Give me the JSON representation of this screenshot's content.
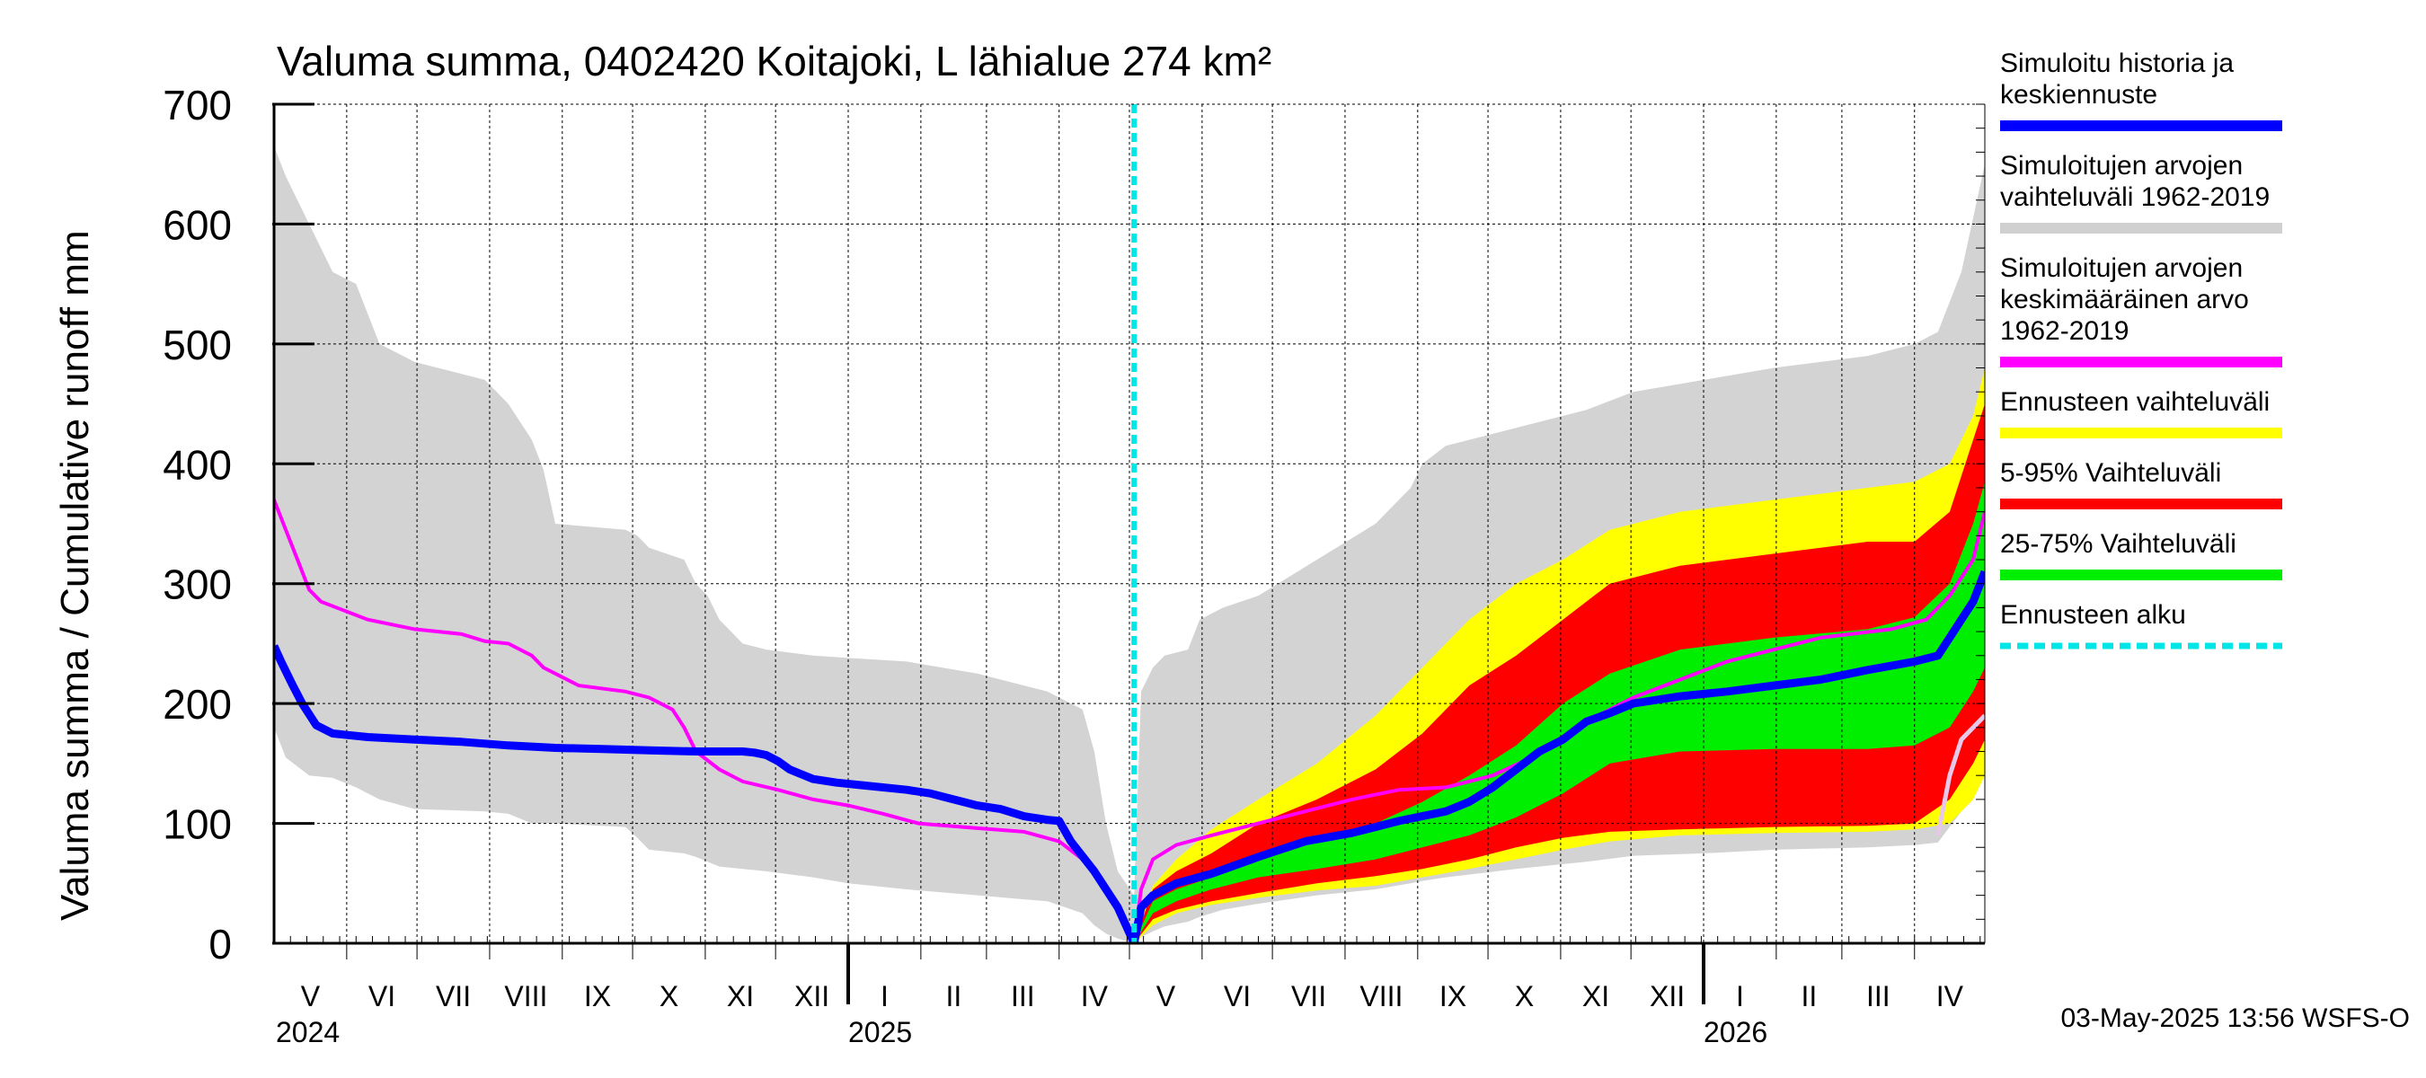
{
  "chart_data": {
    "type": "area",
    "title": "Valuma summa, 0402420 Koitajoki, L lähialue 274 km²",
    "ylabel": "Valuma summa / Cumulative runoff    mm",
    "yticks": [
      0,
      100,
      200,
      300,
      400,
      500,
      600,
      700
    ],
    "ylim": [
      0,
      700
    ],
    "x_unit": "days since 2024-05-01",
    "xlim": [
      0,
      730
    ],
    "forecast_start_day": 367,
    "months": [
      {
        "label": "V",
        "start": 0
      },
      {
        "label": "VI",
        "start": 31
      },
      {
        "label": "VII",
        "start": 61
      },
      {
        "label": "VIII",
        "start": 92
      },
      {
        "label": "IX",
        "start": 123
      },
      {
        "label": "X",
        "start": 153
      },
      {
        "label": "XI",
        "start": 184
      },
      {
        "label": "XII",
        "start": 214
      },
      {
        "label": "I",
        "start": 245
      },
      {
        "label": "II",
        "start": 276
      },
      {
        "label": "III",
        "start": 304
      },
      {
        "label": "IV",
        "start": 335
      },
      {
        "label": "V",
        "start": 365
      },
      {
        "label": "VI",
        "start": 396
      },
      {
        "label": "VII",
        "start": 426
      },
      {
        "label": "VIII",
        "start": 457
      },
      {
        "label": "IX",
        "start": 488
      },
      {
        "label": "X",
        "start": 518
      },
      {
        "label": "XI",
        "start": 549
      },
      {
        "label": "XII",
        "start": 579
      },
      {
        "label": "I",
        "start": 610
      },
      {
        "label": "II",
        "start": 641
      },
      {
        "label": "III",
        "start": 669
      },
      {
        "label": "IV",
        "start": 700
      }
    ],
    "years": [
      {
        "label": "2024",
        "start": 0
      },
      {
        "label": "2025",
        "start": 245
      },
      {
        "label": "2026",
        "start": 610
      }
    ],
    "legend": [
      {
        "key": "sim",
        "text": [
          "Simuloitu historia ja",
          "keskiennuste"
        ],
        "color": "#0000ff",
        "style": "solid"
      },
      {
        "key": "range",
        "text": [
          "Simuloitujen arvojen",
          "vaihteluväli 1962-2019"
        ],
        "color": "#d0d0d0",
        "style": "solid"
      },
      {
        "key": "mean",
        "text": [
          "Simuloitujen arvojen",
          "keskimääräinen arvo",
          "   1962-2019"
        ],
        "color": "#ff00ff",
        "style": "solid"
      },
      {
        "key": "fc_range",
        "text": [
          "Ennusteen vaihteluväli"
        ],
        "color": "#ffff00",
        "style": "solid"
      },
      {
        "key": "p5_95",
        "text": [
          "5-95% Vaihteluväli"
        ],
        "color": "#ff0000",
        "style": "solid"
      },
      {
        "key": "p25_75",
        "text": [
          "25-75% Vaihteluväli"
        ],
        "color": "#00ee00",
        "style": "solid"
      },
      {
        "key": "start",
        "text": [
          "Ennusteen alku"
        ],
        "color": "#00e5e5",
        "style": "dashed"
      }
    ],
    "series": {
      "hist_range": {
        "x": [
          0,
          5,
          15,
          25,
          35,
          45,
          60,
          90,
          100,
          110,
          115,
          120,
          150,
          155,
          160,
          175,
          180,
          185,
          190,
          200,
          210,
          230,
          245,
          270,
          300,
          330,
          345,
          350,
          355,
          360,
          367,
          370,
          375,
          380,
          390,
          395,
          405,
          420,
          445,
          470,
          485,
          490,
          500,
          530,
          560,
          580,
          610,
          640,
          680,
          700,
          710,
          720,
          730
        ],
        "upper": [
          665,
          640,
          600,
          560,
          550,
          500,
          485,
          470,
          450,
          420,
          395,
          350,
          345,
          340,
          330,
          320,
          300,
          290,
          270,
          250,
          245,
          240,
          238,
          235,
          225,
          210,
          195,
          160,
          100,
          60,
          40,
          210,
          230,
          240,
          245,
          270,
          280,
          290,
          320,
          350,
          380,
          400,
          415,
          430,
          445,
          460,
          470,
          480,
          490,
          500,
          510,
          560,
          650
        ],
        "lower": [
          180,
          155,
          140,
          138,
          130,
          120,
          112,
          110,
          108,
          100,
          100,
          100,
          97,
          88,
          78,
          75,
          72,
          68,
          64,
          62,
          60,
          55,
          50,
          45,
          40,
          35,
          25,
          15,
          8,
          4,
          0,
          5,
          10,
          14,
          18,
          22,
          28,
          33,
          40,
          45,
          50,
          52,
          55,
          62,
          68,
          73,
          75,
          78,
          80,
          82,
          84,
          110,
          180
        ]
      },
      "fc_range": {
        "x": [
          367,
          375,
          385,
          400,
          420,
          445,
          470,
          490,
          510,
          530,
          550,
          570,
          600,
          640,
          680,
          700,
          715,
          725,
          730
        ],
        "upper": [
          0,
          48,
          70,
          95,
          120,
          150,
          190,
          230,
          270,
          300,
          320,
          345,
          360,
          370,
          380,
          385,
          400,
          440,
          480
        ],
        "lower": [
          0,
          15,
          25,
          32,
          38,
          44,
          48,
          55,
          62,
          70,
          78,
          85,
          90,
          92,
          93,
          95,
          100,
          120,
          140
        ]
      },
      "p5_95": {
        "x": [
          367,
          375,
          385,
          400,
          420,
          445,
          470,
          490,
          510,
          530,
          550,
          570,
          600,
          640,
          680,
          700,
          715,
          725,
          730
        ],
        "upper": [
          0,
          45,
          60,
          75,
          100,
          120,
          145,
          175,
          215,
          240,
          270,
          300,
          315,
          325,
          335,
          335,
          360,
          420,
          450
        ],
        "lower": [
          0,
          20,
          28,
          35,
          42,
          50,
          56,
          62,
          70,
          80,
          88,
          93,
          95,
          97,
          98,
          100,
          120,
          150,
          170
        ]
      },
      "p25_75": {
        "x": [
          367,
          375,
          385,
          400,
          420,
          445,
          470,
          490,
          510,
          530,
          550,
          570,
          600,
          640,
          680,
          700,
          715,
          725,
          730
        ],
        "upper": [
          0,
          35,
          45,
          55,
          70,
          85,
          100,
          118,
          140,
          165,
          200,
          225,
          245,
          255,
          262,
          272,
          300,
          350,
          385
        ],
        "lower": [
          0,
          25,
          35,
          45,
          55,
          62,
          70,
          80,
          90,
          105,
          125,
          150,
          160,
          162,
          162,
          165,
          180,
          210,
          230
        ]
      },
      "mean": {
        "x": [
          0,
          5,
          10,
          15,
          20,
          40,
          60,
          80,
          90,
          100,
          110,
          115,
          130,
          150,
          160,
          170,
          175,
          180,
          190,
          200,
          215,
          230,
          245,
          260,
          275,
          300,
          320,
          335,
          345,
          355,
          362,
          367,
          370,
          375,
          385,
          400,
          420,
          440,
          460,
          480,
          500,
          520,
          540,
          560,
          580,
          600,
          620,
          640,
          660,
          690,
          705,
          715,
          725,
          730
        ],
        "values": [
          370,
          345,
          320,
          295,
          285,
          270,
          262,
          258,
          252,
          250,
          240,
          230,
          215,
          210,
          205,
          195,
          180,
          160,
          145,
          135,
          128,
          120,
          115,
          108,
          100,
          96,
          93,
          85,
          70,
          45,
          20,
          0,
          45,
          70,
          82,
          90,
          100,
          110,
          120,
          128,
          130,
          140,
          158,
          185,
          205,
          220,
          235,
          245,
          255,
          262,
          270,
          290,
          320,
          360
        ]
      },
      "sim": {
        "x": [
          0,
          3,
          8,
          12,
          18,
          25,
          40,
          60,
          80,
          100,
          120,
          140,
          160,
          180,
          200,
          205,
          210,
          215,
          220,
          230,
          240,
          250,
          270,
          280,
          300,
          310,
          320,
          330,
          335,
          340,
          350,
          360,
          367,
          370,
          375,
          385,
          400,
          420,
          440,
          460,
          480,
          500,
          510,
          520,
          530,
          540,
          550,
          560,
          570,
          580,
          600,
          620,
          640,
          660,
          680,
          700,
          710,
          715,
          720,
          725,
          730
        ],
        "values": [
          248,
          235,
          215,
          200,
          182,
          175,
          172,
          170,
          168,
          165,
          163,
          162,
          161,
          160,
          160,
          159,
          157,
          152,
          145,
          137,
          134,
          132,
          128,
          125,
          115,
          112,
          106,
          103,
          102,
          85,
          60,
          30,
          0,
          30,
          40,
          50,
          58,
          72,
          85,
          92,
          102,
          110,
          118,
          130,
          145,
          160,
          170,
          185,
          192,
          200,
          206,
          210,
          215,
          220,
          228,
          235,
          240,
          255,
          270,
          285,
          310
        ]
      },
      "obs_tail": {
        "x": [
          710,
          715,
          720,
          730
        ],
        "values": [
          90,
          140,
          170,
          190
        ]
      }
    }
  },
  "footer": {
    "timestamp": "03-May-2025 13:56 WSFS-O"
  }
}
